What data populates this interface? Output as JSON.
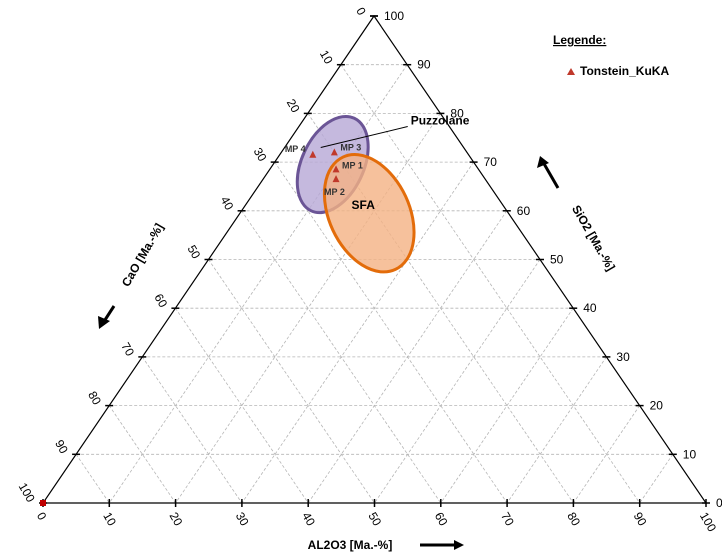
{
  "chart_data": {
    "type": "ternary",
    "axes": {
      "right": {
        "label": "SiO2 [Ma.-%]",
        "ticks": [
          "0",
          "10",
          "20",
          "30",
          "40",
          "50",
          "60",
          "70",
          "80",
          "90",
          "100"
        ]
      },
      "left": {
        "label": "CaO [Ma.-%]",
        "ticks": [
          "0",
          "10",
          "20",
          "30",
          "40",
          "50",
          "60",
          "70",
          "80",
          "90",
          "100"
        ]
      },
      "bottom": {
        "label": "AL2O3 [Ma.-%]",
        "ticks": [
          "0",
          "10",
          "20",
          "30",
          "40",
          "50",
          "60",
          "70",
          "80",
          "90",
          "100"
        ]
      }
    },
    "grid": true,
    "legend": {
      "title": "Legende:",
      "placement": "top-right",
      "items": [
        {
          "name": "Tonstein_KuKA",
          "marker": "triangle",
          "color": "#c0392b"
        }
      ]
    },
    "series": [
      {
        "name": "Tonstein_KuKA",
        "points": [
          {
            "label": "MP 4",
            "SiO2": 71.5,
            "CaO": 23.5,
            "Al2O3": 5.0
          },
          {
            "label": "MP 3",
            "SiO2": 72.0,
            "CaO": 20.0,
            "Al2O3": 8.0
          },
          {
            "label": "MP 1",
            "SiO2": 68.5,
            "CaO": 21.5,
            "Al2O3": 10.0
          },
          {
            "label": "MP 2",
            "SiO2": 66.5,
            "CaO": 22.5,
            "Al2O3": 11.0
          }
        ]
      }
    ],
    "extra_markers": [
      {
        "SiO2": 0,
        "CaO": 100,
        "Al2O3": 0,
        "color": "#c00000",
        "shape": "square"
      }
    ],
    "regions": [
      {
        "label": "Puzzolane",
        "center": {
          "SiO2": 69.5,
          "CaO": 21.5,
          "Al2O3": 9.0
        },
        "rx": 8.5,
        "ry": 14.0,
        "rotate": 25,
        "fill": "#b7a8d6",
        "stroke": "#6b5596"
      },
      {
        "label": "SFA",
        "center": {
          "SiO2": 59.5,
          "CaO": 21.0,
          "Al2O3": 19.5
        },
        "rx": 11.0,
        "ry": 17.0,
        "rotate": -25,
        "fill": "#f4b183",
        "stroke": "#e36c0a"
      }
    ]
  }
}
